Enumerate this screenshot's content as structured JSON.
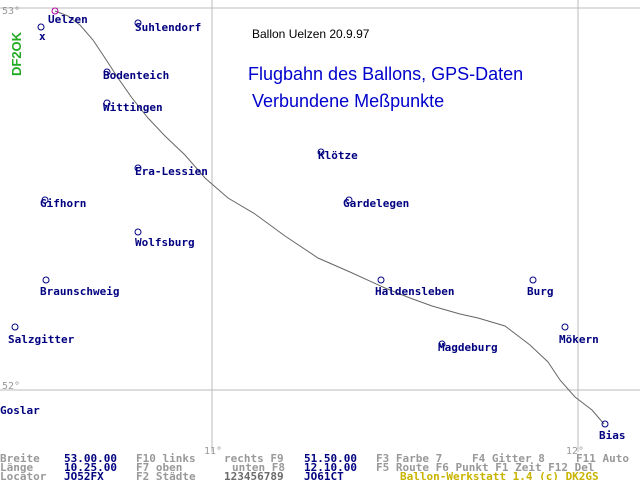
{
  "map": {
    "grid_labels": [
      "53°",
      "52°",
      "11°",
      "12°"
    ],
    "callsign": "DF2OK",
    "marker": "x",
    "caption": "Ballon Uelzen 20.9.97",
    "title": "Flugbahn des Ballons, GPS-Daten",
    "subtitle": "Verbundene Meßpunkte",
    "places": [
      "Uelzen",
      "Suhlendorf",
      "Bodenteich",
      "Wittingen",
      "Klötze",
      "Era-Lessien",
      "Gifhorn",
      "Gardelegen",
      "Wolfsburg",
      "Braunschweig",
      "Haldensleben",
      "Burg",
      "Salzgitter",
      "Mökern",
      "Magdeburg",
      "Bias",
      "Goslar"
    ]
  },
  "status_bar": {
    "rows": [
      [
        "Breite",
        "53.00.00",
        "F10 links",
        "rechts F9",
        "51.50.00",
        "F3 Farbe 7",
        "F4 Gitter 8",
        "F11 Auto"
      ],
      [
        "Länge",
        "10.25.00",
        "F7  oben",
        "unten F8",
        "12.10.00",
        "F5 Route F6 Punkt F1 Zeit F12 Del"
      ],
      [
        "Locator",
        "JO52FX",
        "F2 Städte",
        "123456789",
        "JO61CT",
        "Ballon-Werkstatt 1.4 (c) DK2GS"
      ]
    ]
  }
}
